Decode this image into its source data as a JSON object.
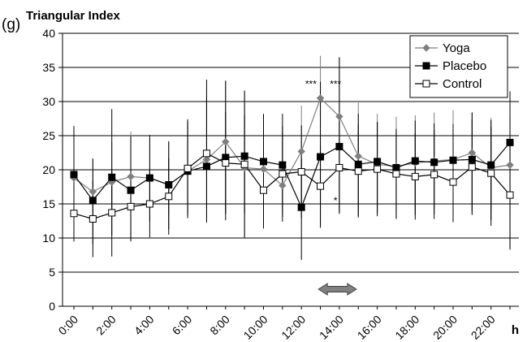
{
  "chart_data": {
    "type": "line",
    "panel_label": "(g)",
    "title": "Triangular Index",
    "xlabel": "h",
    "ylabel": "",
    "ylim": [
      0,
      40
    ],
    "yticks": [
      0,
      5,
      10,
      15,
      20,
      25,
      30,
      35,
      40
    ],
    "grid": true,
    "legend_position": "top-right",
    "x": [
      0,
      1,
      2,
      3,
      4,
      5,
      6,
      7,
      8,
      9,
      10,
      11,
      12,
      13,
      14,
      15,
      16,
      17,
      18,
      19,
      20,
      21,
      22,
      23
    ],
    "xticks": [
      {
        "x": 0,
        "label": "0:00"
      },
      {
        "x": 2,
        "label": "2:00"
      },
      {
        "x": 4,
        "label": "4:00"
      },
      {
        "x": 6,
        "label": "6:00"
      },
      {
        "x": 8,
        "label": "8:00"
      },
      {
        "x": 10,
        "label": "10:00"
      },
      {
        "x": 12,
        "label": "12:00"
      },
      {
        "x": 14,
        "label": "14:00"
      },
      {
        "x": 16,
        "label": "16:00"
      },
      {
        "x": 18,
        "label": "18:00"
      },
      {
        "x": 20,
        "label": "20:00"
      },
      {
        "x": 22,
        "label": "22:00"
      }
    ],
    "series": [
      {
        "name": "Yoga",
        "marker": "diamond",
        "color": "#7f7f7f",
        "values": [
          18.8,
          16.8,
          18.2,
          19.0,
          18.8,
          17.8,
          19.8,
          21.5,
          24.1,
          20.3,
          20.1,
          17.7,
          22.7,
          30.5,
          27.8,
          22.0,
          20.8,
          20.5,
          21.0,
          21.3,
          21.5,
          22.5,
          20.3,
          20.7
        ],
        "err_low": [
          16.2,
          13.8,
          13.3,
          14.7,
          14.2,
          13.4,
          13.8,
          12.2,
          13.9,
          10.2,
          12.6,
          13.9,
          14.4,
          13.6,
          13.5,
          14.2,
          13.8,
          13.9,
          14.1,
          14.3,
          14.5,
          13.4,
          14.2,
          13.6
        ],
        "err_high": [
          25.1,
          21.7,
          24.1,
          25.6,
          24.5,
          24.0,
          27.0,
          30.9,
          33.1,
          31.5,
          27.7,
          25.6,
          29.4,
          36.7,
          36.4,
          30.0,
          28.2,
          27.8,
          28.0,
          28.4,
          28.7,
          28.4,
          27.6,
          27.8
        ]
      },
      {
        "name": "Placebo",
        "marker": "filled-square",
        "color": "#000000",
        "values": [
          19.3,
          15.5,
          18.9,
          17.0,
          18.8,
          17.8,
          19.8,
          20.5,
          21.8,
          22.0,
          21.2,
          20.7,
          14.5,
          21.9,
          23.4,
          20.8,
          21.2,
          20.3,
          21.3,
          21.1,
          21.4,
          21.5,
          20.7,
          24.0
        ],
        "err_low": [
          12.1,
          9.1,
          10.4,
          9.8,
          12.4,
          11.3,
          13.3,
          12.3,
          12.6,
          10.0,
          13.7,
          13.1,
          6.8,
          11.5,
          13.8,
          13.2,
          13.6,
          12.9,
          13.4,
          13.5,
          13.8,
          13.9,
          11.8,
          8.5
        ],
        "err_high": [
          26.4,
          21.6,
          28.9,
          24.9,
          25.1,
          24.2,
          27.1,
          33.2,
          33.0,
          31.6,
          28.2,
          28.2,
          21.6,
          32.9,
          36.5,
          28.2,
          27.0,
          25.4,
          27.2,
          26.8,
          26.7,
          28.4,
          27.3,
          31.5
        ]
      },
      {
        "name": "Control",
        "marker": "open-square",
        "color": "#000000",
        "values": [
          13.6,
          12.8,
          13.7,
          14.6,
          15.0,
          16.1,
          20.2,
          22.4,
          21.0,
          20.8,
          17.0,
          19.4,
          19.7,
          17.6,
          20.3,
          19.8,
          20.1,
          19.4,
          19.0,
          19.3,
          18.2,
          20.4,
          19.5,
          16.3
        ],
        "err_low": [
          9.5,
          7.2,
          7.3,
          9.5,
          10.1,
          10.5,
          12.9,
          14.3,
          13.5,
          13.6,
          11.4,
          12.4,
          12.9,
          11.8,
          13.6,
          13.0,
          13.2,
          12.8,
          12.7,
          12.8,
          12.3,
          13.4,
          12.6,
          8.3
        ],
        "err_high": [
          17.8,
          18.4,
          20.1,
          19.7,
          19.9,
          21.7,
          27.4,
          30.6,
          28.5,
          28.0,
          22.6,
          26.4,
          26.5,
          23.4,
          27.0,
          26.6,
          27.0,
          26.0,
          25.3,
          25.8,
          24.1,
          27.4,
          26.4,
          24.3
        ]
      }
    ],
    "annotations": [
      {
        "text": "***",
        "x": 12.5,
        "y": 32.1
      },
      {
        "text": "***",
        "x": 13.8,
        "y": 32.1
      },
      {
        "text": "*",
        "x": 13.8,
        "y": 15.0
      }
    ],
    "range_marker": {
      "from": 12.9,
      "to": 14.9,
      "y": 2.5,
      "label": ""
    }
  }
}
